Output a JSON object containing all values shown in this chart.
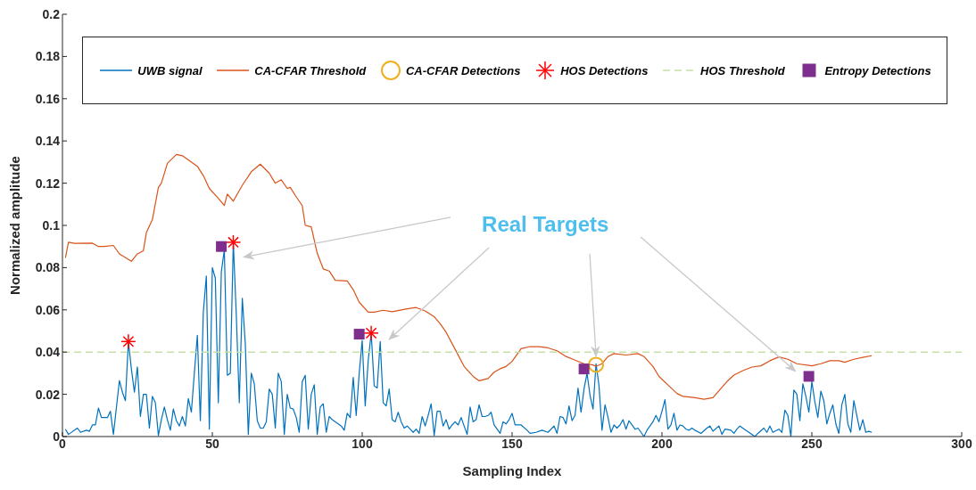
{
  "chart_data": {
    "type": "line",
    "xlabel": "Sampling Index",
    "ylabel": "Normalized amplitude",
    "xlim": [
      0,
      300
    ],
    "ylim": [
      0,
      0.2
    ],
    "xticks": [
      0,
      50,
      100,
      150,
      200,
      250,
      300
    ],
    "yticks": [
      0,
      0.02,
      0.04,
      0.06,
      0.08,
      0.1,
      0.12,
      0.14,
      0.16,
      0.18,
      0.2
    ],
    "legend": "top",
    "annotations": [
      {
        "text": "Real Targets",
        "x": 178,
        "y": 0.038
      }
    ],
    "series": [
      {
        "name": "UWB signal",
        "color": "#0072bd",
        "x": [
          1,
          2,
          5,
          6,
          8,
          9,
          10,
          11,
          12,
          13,
          15,
          16,
          17,
          19,
          20,
          21,
          22,
          23,
          24,
          25,
          26,
          27,
          28,
          29,
          30,
          31,
          32,
          33,
          34,
          35,
          36,
          37,
          38,
          39,
          40,
          41,
          42,
          43,
          44,
          45,
          46,
          47,
          48,
          49,
          50,
          51,
          52,
          53,
          54,
          55,
          56,
          57,
          58,
          59,
          60,
          61,
          62,
          63,
          64,
          65,
          66,
          67,
          68,
          69,
          70,
          71,
          72,
          73,
          74,
          75,
          76,
          77,
          78,
          79,
          80,
          81,
          82,
          83,
          84,
          85,
          86,
          87,
          88,
          89,
          90,
          91,
          92,
          93,
          94,
          95,
          96,
          97,
          98,
          99,
          100,
          101,
          102,
          103,
          104,
          105,
          106,
          107,
          108,
          109,
          110,
          111,
          112,
          113,
          114,
          115,
          116,
          117,
          118,
          119,
          120,
          121,
          122,
          123,
          124,
          125,
          126,
          127,
          128,
          129,
          130,
          131,
          132,
          133,
          134,
          135,
          136,
          137,
          138,
          139,
          140,
          141,
          142,
          143,
          144,
          146,
          147,
          148,
          149,
          150,
          151,
          153,
          155,
          156,
          158,
          160,
          162,
          164,
          165,
          166,
          167,
          168,
          169,
          170,
          171,
          172,
          173,
          174,
          175,
          176,
          177,
          178,
          179,
          180,
          181,
          182,
          183,
          184,
          185,
          186,
          187,
          188,
          189,
          190,
          191,
          192,
          193,
          194,
          195,
          196,
          197,
          198,
          199,
          200,
          201,
          202,
          203,
          204,
          205,
          206,
          207,
          208,
          209,
          210,
          211,
          213,
          215,
          216,
          217,
          219,
          220,
          221,
          223,
          224,
          225,
          226,
          228,
          229,
          231,
          232,
          234,
          235,
          236,
          237,
          239,
          240,
          241,
          242,
          243,
          244,
          245,
          246,
          247,
          248,
          249,
          250,
          251,
          252,
          253,
          254,
          255,
          256,
          257,
          258,
          259,
          260,
          261,
          262,
          263,
          264,
          265,
          266,
          267,
          268,
          269,
          270
        ],
        "values": [
          0.0035,
          0.001,
          0.004,
          0.002,
          0.003,
          0.0025,
          0.0055,
          0.0055,
          0.0135,
          0.009,
          0.009,
          0.012,
          0.001,
          0.0265,
          0.021,
          0.017,
          0.045,
          0.032,
          0.021,
          0.033,
          0.0095,
          0.02,
          0.02,
          0.004,
          0.019,
          0.016,
          0.0005,
          0.008,
          0.014,
          0.008,
          0.003,
          0.013,
          0.0075,
          0.005,
          0.0095,
          0.005,
          0.018,
          0.0115,
          0.03,
          0.048,
          0.0075,
          0.059,
          0.076,
          0.0035,
          0.08,
          0.075,
          0.016,
          0.078,
          0.0885,
          0.029,
          0.03,
          0.092,
          0.0575,
          0.016,
          0.0655,
          0.044,
          0.001,
          0.03,
          0.025,
          0.0075,
          0.004,
          0.004,
          0.007,
          0.0225,
          0.02,
          0.004,
          0.03,
          0.026,
          0.001,
          0.02,
          0.0135,
          0.013,
          0.009,
          0.002,
          0.026,
          0.029,
          0.0035,
          0.02,
          0.0245,
          0.001,
          0.014,
          0.0155,
          0.002,
          0.0095,
          0.008,
          0.007,
          0.006,
          0.005,
          0.003,
          0.011,
          0.009,
          0.028,
          0.01,
          0.03,
          0.0455,
          0.0145,
          0.036,
          0.049,
          0.024,
          0.023,
          0.045,
          0.016,
          0.0145,
          0.0225,
          0.008,
          0.007,
          0.0115,
          0.007,
          0.004,
          0.005,
          0.0035,
          0.002,
          0.0035,
          0.0015,
          0.0095,
          0.005,
          0.01,
          0.0155,
          0.0005,
          0.012,
          0.012,
          0.005,
          0.008,
          0.0035,
          0.0055,
          0.007,
          0.0055,
          0.009,
          0.005,
          0.001,
          0.014,
          0.007,
          0.008,
          0.015,
          0.0095,
          0.0095,
          0.01,
          0.0115,
          0.0055,
          0.0015,
          0.007,
          0.006,
          0.008,
          0.011,
          0.0055,
          0.0055,
          0.003,
          0.0015,
          0.002,
          0.003,
          0.002,
          0.005,
          0.0015,
          0.0095,
          0.009,
          0.006,
          0.0145,
          0.0075,
          0.01,
          0.023,
          0.0115,
          0.0225,
          0.03,
          0.0195,
          0.013,
          0.0345,
          0.024,
          0.003,
          0.015,
          0.009,
          0.002,
          0.0055,
          0.004,
          0.0055,
          0.008,
          0.0035,
          0.0075,
          0.0055,
          0.0035,
          0.004,
          0.002,
          0,
          0.003,
          0.005,
          0.007,
          0.01,
          0.007,
          0.012,
          0.0175,
          0.0035,
          0.0055,
          0.011,
          0.003,
          0.0055,
          0.005,
          0.0035,
          0.003,
          0.004,
          0.003,
          0.0015,
          0.004,
          0.005,
          0.0025,
          0.005,
          0.001,
          0.0035,
          0.003,
          0.0015,
          0.0035,
          0.005,
          0.003,
          0.002,
          0,
          0.0015,
          0.004,
          0.002,
          0.005,
          0.002,
          0.0035,
          0.002,
          0.0125,
          0.01,
          0,
          0.022,
          0.02,
          0.0075,
          0.025,
          0.019,
          0.0115,
          0.026,
          0.0165,
          0.009,
          0.0215,
          0.017,
          0.006,
          0.011,
          0.015,
          0.006,
          0.0015,
          0.015,
          0.02,
          0.006,
          0.002,
          0.017,
          0.01,
          0.003,
          0.008,
          0.002,
          0.0025,
          0.002
        ]
      },
      {
        "name": "CA-CFAR Threshold",
        "color": "#d95319",
        "x": [
          1,
          2,
          4,
          10,
          12,
          14,
          17,
          19,
          23,
          25,
          27,
          28,
          30,
          32,
          33,
          35,
          38,
          40,
          42,
          45,
          47,
          49,
          52,
          54,
          55,
          57,
          60,
          63,
          66,
          69,
          71,
          73,
          75,
          76,
          78,
          80,
          81,
          83,
          85,
          87,
          89,
          91,
          95,
          97,
          99,
          102,
          104,
          107,
          110,
          115,
          118,
          121,
          124,
          126,
          128,
          131,
          134,
          137,
          139,
          142,
          144,
          146,
          148,
          150,
          153,
          156,
          159,
          162,
          165,
          168,
          171,
          174,
          177,
          178,
          180,
          182,
          184,
          188,
          192,
          194,
          197,
          199,
          202,
          205,
          207,
          211,
          214,
          217,
          219,
          222,
          224,
          227,
          230,
          233,
          236,
          239,
          242,
          245,
          250,
          253,
          256,
          259,
          261,
          264,
          267,
          270
        ],
        "values": [
          0.0847,
          0.092,
          0.0915,
          0.0916,
          0.09,
          0.09,
          0.0905,
          0.0865,
          0.083,
          0.0865,
          0.088,
          0.0966,
          0.1027,
          0.118,
          0.12,
          0.1294,
          0.1336,
          0.133,
          0.131,
          0.128,
          0.1236,
          0.1175,
          0.1128,
          0.1094,
          0.1148,
          0.1115,
          0.119,
          0.1254,
          0.129,
          0.1247,
          0.12,
          0.1216,
          0.1175,
          0.118,
          0.1135,
          0.1094,
          0.1,
          0.0993,
          0.0868,
          0.0794,
          0.0784,
          0.074,
          0.0737,
          0.0696,
          0.0636,
          0.0589,
          0.0589,
          0.0598,
          0.0591,
          0.0605,
          0.0611,
          0.0595,
          0.0568,
          0.0534,
          0.0494,
          0.0413,
          0.0332,
          0.0285,
          0.0264,
          0.0275,
          0.0305,
          0.0321,
          0.0332,
          0.0356,
          0.0416,
          0.0426,
          0.0426,
          0.042,
          0.0406,
          0.0379,
          0.0362,
          0.0345,
          0.0339,
          0.0332,
          0.0345,
          0.0379,
          0.0393,
          0.0386,
          0.0393,
          0.0379,
          0.0332,
          0.0285,
          0.0244,
          0.0204,
          0.019,
          0.0184,
          0.0177,
          0.0184,
          0.0217,
          0.0265,
          0.0291,
          0.0312,
          0.0329,
          0.0335,
          0.0359,
          0.0377,
          0.0366,
          0.0345,
          0.0335,
          0.0345,
          0.0359,
          0.0359,
          0.0352,
          0.0366,
          0.0375,
          0.0383
        ]
      },
      {
        "name": "CA-CFAR Detections",
        "type": "scatter",
        "marker": "circle",
        "color": "#edb120",
        "x": [
          178
        ],
        "values": [
          0.034
        ]
      },
      {
        "name": "HOS Detections",
        "type": "scatter",
        "marker": "cross",
        "color": "#ff0000",
        "x": [
          22,
          57,
          103
        ],
        "values": [
          0.045,
          0.092,
          0.049
        ]
      },
      {
        "name": "HOS Threshold",
        "line_style": "dashed",
        "color": "#c5e0a5",
        "x": [
          0,
          300
        ],
        "values": [
          0.04,
          0.04
        ]
      },
      {
        "name": "Entropy Detections",
        "type": "scatter",
        "marker": "square",
        "color": "#7e2f8e",
        "x": [
          53,
          99,
          174,
          249
        ],
        "values": [
          0.09,
          0.0485,
          0.032,
          0.0285
        ]
      }
    ]
  }
}
